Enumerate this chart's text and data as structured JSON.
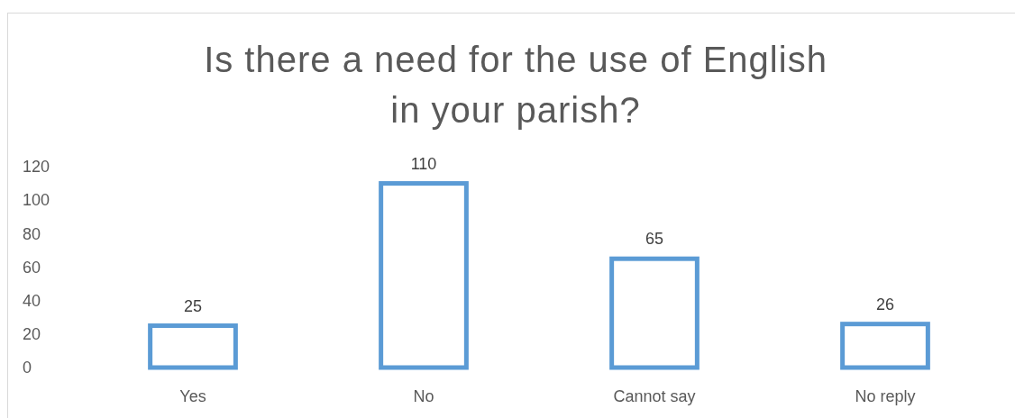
{
  "chart_data": {
    "type": "bar",
    "title": "Is there a need for the use of English in your parish?",
    "categories": [
      "Yes",
      "No",
      "Cannot say",
      "No reply"
    ],
    "values": [
      25,
      110,
      65,
      26
    ],
    "color": "#5b9bd5",
    "ylim": [
      0,
      120
    ],
    "yticks": [
      0,
      20,
      40,
      60,
      80,
      100,
      120
    ],
    "data_labels": true
  }
}
